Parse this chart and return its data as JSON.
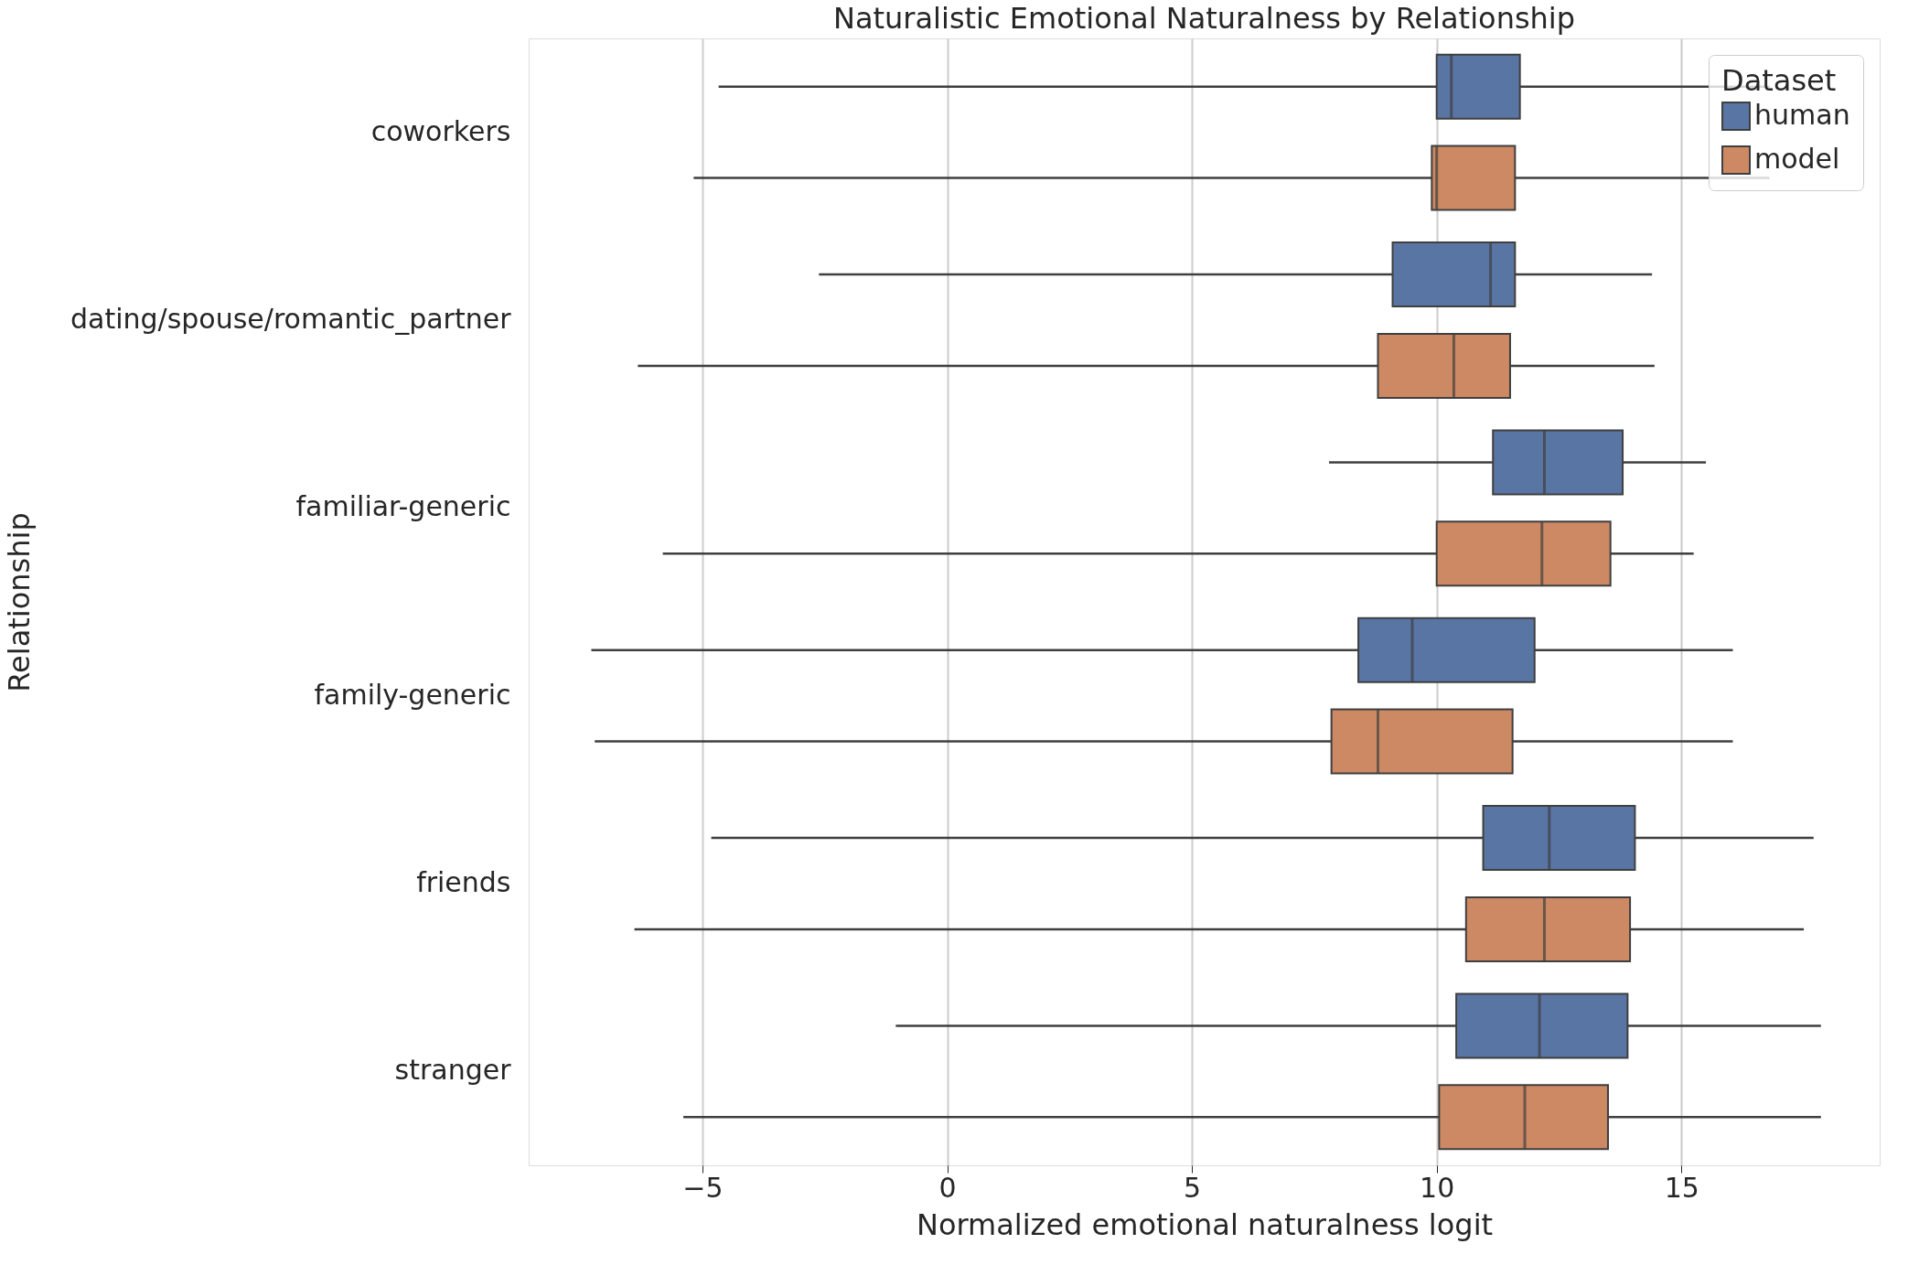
{
  "chart_data": {
    "type": "box",
    "orientation": "horizontal",
    "title": "Naturalistic Emotional Naturalness by Relationship",
    "xlabel": "Normalized emotional naturalness logit",
    "ylabel": "Relationship",
    "legend_title": "Dataset",
    "legend": "top right",
    "grid": "x",
    "categories": [
      "coworkers",
      "dating/spouse/romantic_partner",
      "familiar-generic",
      "family-generic",
      "friends",
      "stranger"
    ],
    "xlim": [
      -8.55,
      19.05
    ],
    "xticks": [
      -5,
      0,
      5,
      10,
      15
    ],
    "series": [
      {
        "name": "human",
        "color": "#5975a4",
        "boxes": [
          {
            "low": -4.67,
            "q1": 10.0,
            "median": 10.3,
            "q3": 11.7,
            "high": 16.8
          },
          {
            "low": -2.62,
            "q1": 9.1,
            "median": 11.1,
            "q3": 11.6,
            "high": 14.4
          },
          {
            "low": 7.8,
            "q1": 11.15,
            "median": 12.2,
            "q3": 13.8,
            "high": 15.5
          },
          {
            "low": -7.27,
            "q1": 8.4,
            "median": 9.5,
            "q3": 12.0,
            "high": 16.05
          },
          {
            "low": -4.82,
            "q1": 10.95,
            "median": 12.3,
            "q3": 14.05,
            "high": 17.7
          },
          {
            "low": -1.05,
            "q1": 10.4,
            "median": 12.1,
            "q3": 13.9,
            "high": 17.85
          }
        ]
      },
      {
        "name": "model",
        "color": "#cc8963",
        "boxes": [
          {
            "low": -5.18,
            "q1": 9.9,
            "median": 10.0,
            "q3": 11.6,
            "high": 16.8
          },
          {
            "low": -6.32,
            "q1": 8.8,
            "median": 10.35,
            "q3": 11.5,
            "high": 14.45
          },
          {
            "low": -5.81,
            "q1": 10.0,
            "median": 12.15,
            "q3": 13.55,
            "high": 15.25
          },
          {
            "low": -7.2,
            "q1": 7.85,
            "median": 8.8,
            "q3": 11.55,
            "high": 16.05
          },
          {
            "low": -6.39,
            "q1": 10.6,
            "median": 12.2,
            "q3": 13.95,
            "high": 17.5
          },
          {
            "low": -5.39,
            "q1": 10.05,
            "median": 11.8,
            "q3": 13.5,
            "high": 17.85
          }
        ]
      }
    ]
  }
}
